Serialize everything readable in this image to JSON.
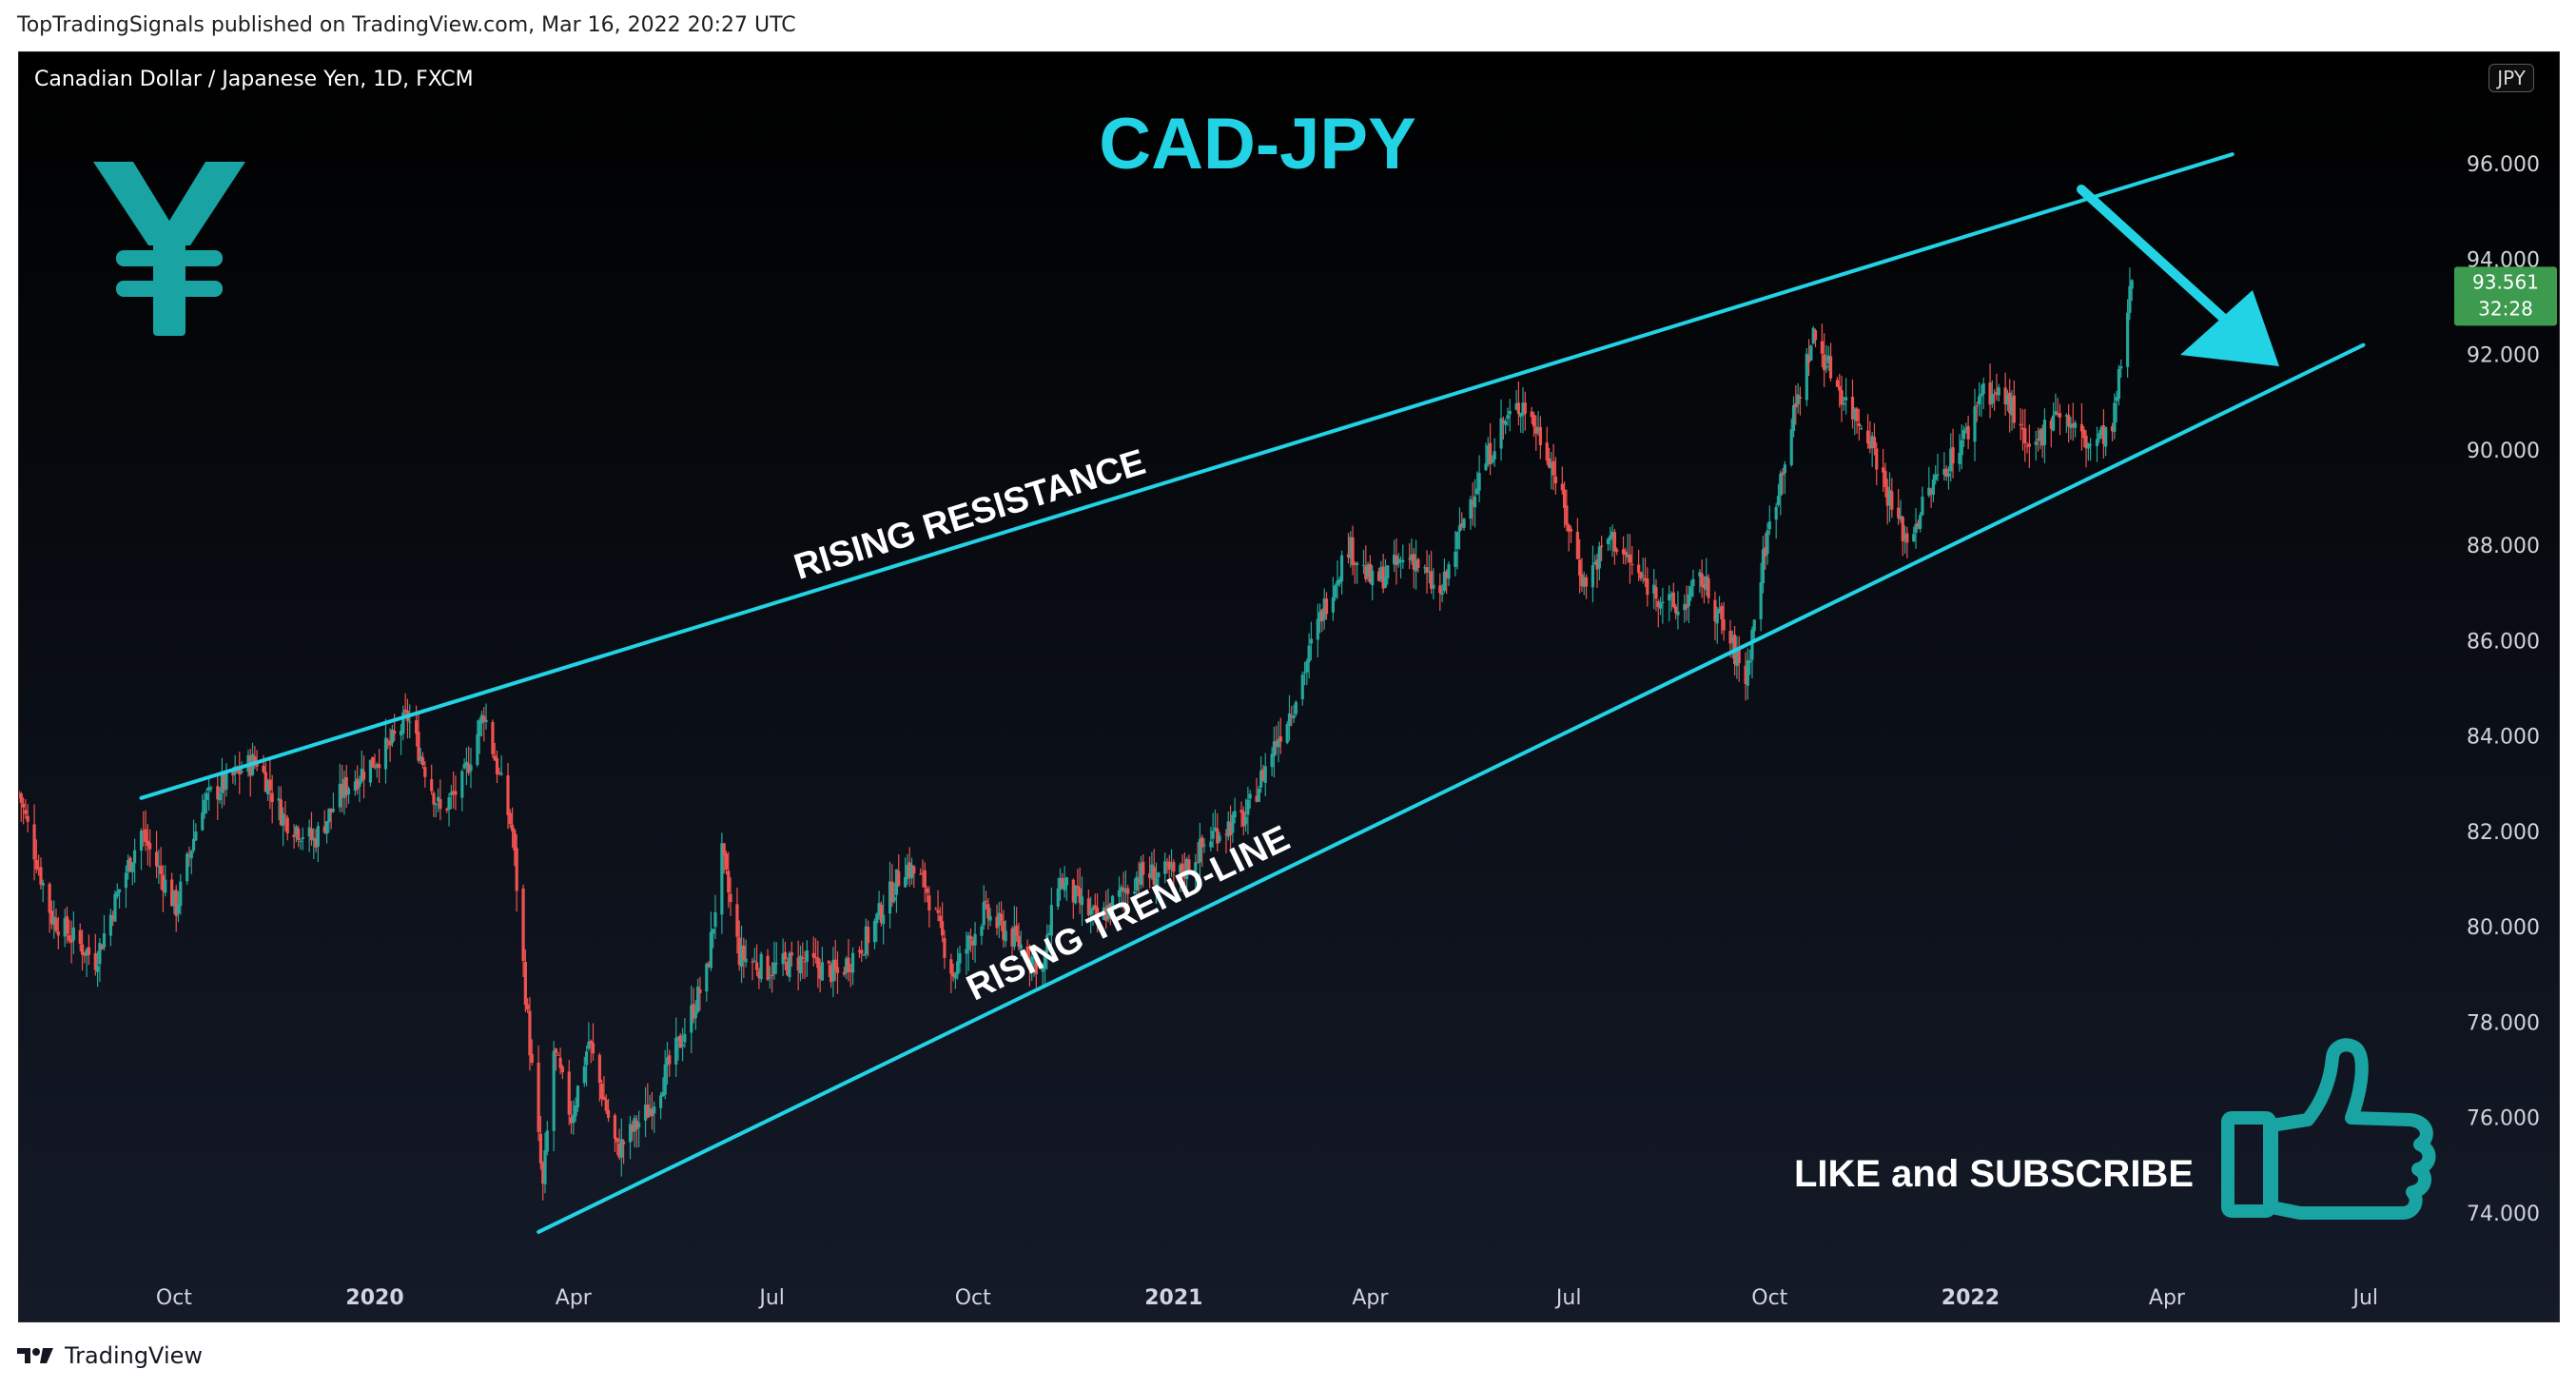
{
  "header": {
    "published_line": "TopTradingSignals published on TradingView.com, Mar 16, 2022 20:27 UTC"
  },
  "chart_header": {
    "symbol_description": "Canadian Dollar / Japanese Yen, 1D, FXCM",
    "currency_badge": "JPY"
  },
  "price_label": {
    "value": "93.561",
    "countdown": "32:28",
    "color": "#3d9b4f"
  },
  "annotations": {
    "title": "CAD-JPY",
    "resistance_label": "RISING RESISTANCE",
    "trendline_label": "RISING TREND-LINE",
    "cta_text": "LIKE and SUBSCRIBE",
    "yen_icon": "yen-sign-icon",
    "thumb_icon": "thumbs-up-icon",
    "arrow_icon": "down-right-arrow-icon",
    "line_color": "#22d3e6",
    "icon_color": "#1aa3a3"
  },
  "footer": {
    "brand": "TradingView"
  },
  "colors": {
    "up_candle": "#26a69a",
    "down_candle": "#ef5350",
    "axis_text": "#d1d4dc"
  },
  "chart_data": {
    "type": "candlestick",
    "title": "CAD-JPY",
    "subtitle": "Canadian Dollar / Japanese Yen, 1D, FXCM",
    "ylim": [
      73,
      97.5
    ],
    "y_ticks": [
      "74.000",
      "76.000",
      "78.000",
      "80.000",
      "82.000",
      "84.000",
      "86.000",
      "88.000",
      "90.000",
      "92.000",
      "94.000",
      "96.000"
    ],
    "x_range": [
      "2019-07-22",
      "2022-08-15"
    ],
    "x_ticks": [
      {
        "date": "2019-10-01",
        "label": "Oct",
        "bold": false
      },
      {
        "date": "2020-01-01",
        "label": "2020",
        "bold": true
      },
      {
        "date": "2020-04-01",
        "label": "Apr",
        "bold": false
      },
      {
        "date": "2020-07-01",
        "label": "Jul",
        "bold": false
      },
      {
        "date": "2020-10-01",
        "label": "Oct",
        "bold": false
      },
      {
        "date": "2021-01-01",
        "label": "2021",
        "bold": true
      },
      {
        "date": "2021-04-01",
        "label": "Apr",
        "bold": false
      },
      {
        "date": "2021-07-01",
        "label": "Jul",
        "bold": false
      },
      {
        "date": "2021-10-01",
        "label": "Oct",
        "bold": false
      },
      {
        "date": "2022-01-01",
        "label": "2022",
        "bold": true
      },
      {
        "date": "2022-04-01",
        "label": "Apr",
        "bold": false
      },
      {
        "date": "2022-07-01",
        "label": "Jul",
        "bold": false
      }
    ],
    "price_path": [
      [
        "2019-07-22",
        82.8
      ],
      [
        "2019-08-06",
        80.2
      ],
      [
        "2019-08-26",
        79.3
      ],
      [
        "2019-09-06",
        80.8
      ],
      [
        "2019-09-16",
        82.0
      ],
      [
        "2019-10-02",
        80.4
      ],
      [
        "2019-10-14",
        82.6
      ],
      [
        "2019-11-01",
        83.3
      ],
      [
        "2019-11-08",
        83.5
      ],
      [
        "2019-11-20",
        82.3
      ],
      [
        "2019-12-04",
        81.8
      ],
      [
        "2019-12-18",
        82.9
      ],
      [
        "2020-01-08",
        83.8
      ],
      [
        "2020-01-16",
        84.4
      ],
      [
        "2020-01-31",
        82.4
      ],
      [
        "2020-02-10",
        83.0
      ],
      [
        "2020-02-20",
        84.5
      ],
      [
        "2020-03-04",
        82.0
      ],
      [
        "2020-03-12",
        77.5
      ],
      [
        "2020-03-18",
        74.5
      ],
      [
        "2020-03-23",
        77.4
      ],
      [
        "2020-03-31",
        76.0
      ],
      [
        "2020-04-08",
        77.6
      ],
      [
        "2020-04-21",
        75.3
      ],
      [
        "2020-05-06",
        76.2
      ],
      [
        "2020-05-20",
        77.6
      ],
      [
        "2020-06-01",
        79.0
      ],
      [
        "2020-06-08",
        81.5
      ],
      [
        "2020-06-16",
        79.4
      ],
      [
        "2020-06-29",
        79.1
      ],
      [
        "2020-07-14",
        79.3
      ],
      [
        "2020-07-31",
        79.0
      ],
      [
        "2020-08-14",
        79.8
      ],
      [
        "2020-08-31",
        81.3
      ],
      [
        "2020-09-09",
        80.9
      ],
      [
        "2020-09-22",
        79.0
      ],
      [
        "2020-10-06",
        80.3
      ],
      [
        "2020-10-21",
        79.7
      ],
      [
        "2020-11-02",
        79.1
      ],
      [
        "2020-11-09",
        81.0
      ],
      [
        "2020-11-27",
        80.1
      ],
      [
        "2020-12-16",
        81.1
      ],
      [
        "2021-01-04",
        81.1
      ],
      [
        "2021-01-20",
        82.0
      ],
      [
        "2021-02-03",
        82.3
      ],
      [
        "2021-02-16",
        83.8
      ],
      [
        "2021-02-25",
        84.7
      ],
      [
        "2021-03-10",
        86.6
      ],
      [
        "2021-03-22",
        88.0
      ],
      [
        "2021-04-02",
        87.2
      ],
      [
        "2021-04-20",
        87.8
      ],
      [
        "2021-05-03",
        86.9
      ],
      [
        "2021-05-17",
        89.0
      ],
      [
        "2021-05-31",
        90.5
      ],
      [
        "2021-06-10",
        91.0
      ],
      [
        "2021-06-22",
        89.9
      ],
      [
        "2021-07-08",
        87.2
      ],
      [
        "2021-07-20",
        88.2
      ],
      [
        "2021-08-03",
        87.3
      ],
      [
        "2021-08-20",
        86.6
      ],
      [
        "2021-08-31",
        87.3
      ],
      [
        "2021-09-20",
        85.2
      ],
      [
        "2021-09-29",
        88.0
      ],
      [
        "2021-10-11",
        90.5
      ],
      [
        "2021-10-21",
        92.4
      ],
      [
        "2021-11-05",
        91.0
      ],
      [
        "2021-11-16",
        90.3
      ],
      [
        "2021-11-26",
        88.8
      ],
      [
        "2021-12-03",
        88.1
      ],
      [
        "2021-12-14",
        89.2
      ],
      [
        "2021-12-31",
        90.4
      ],
      [
        "2022-01-06",
        91.3
      ],
      [
        "2022-01-19",
        91.0
      ],
      [
        "2022-01-28",
        89.8
      ],
      [
        "2022-02-09",
        90.9
      ],
      [
        "2022-02-24",
        90.1
      ],
      [
        "2022-03-07",
        90.4
      ],
      [
        "2022-03-16",
        93.561
      ]
    ],
    "last_date": "2022-03-16",
    "resistance_line": {
      "from": [
        "2019-09-16",
        82.7
      ],
      "to": [
        "2022-05-01",
        96.2
      ]
    },
    "trend_line": {
      "from": [
        "2020-03-16",
        73.6
      ],
      "to": [
        "2022-06-30",
        92.2
      ]
    },
    "grid": false,
    "price_axis": "right"
  }
}
